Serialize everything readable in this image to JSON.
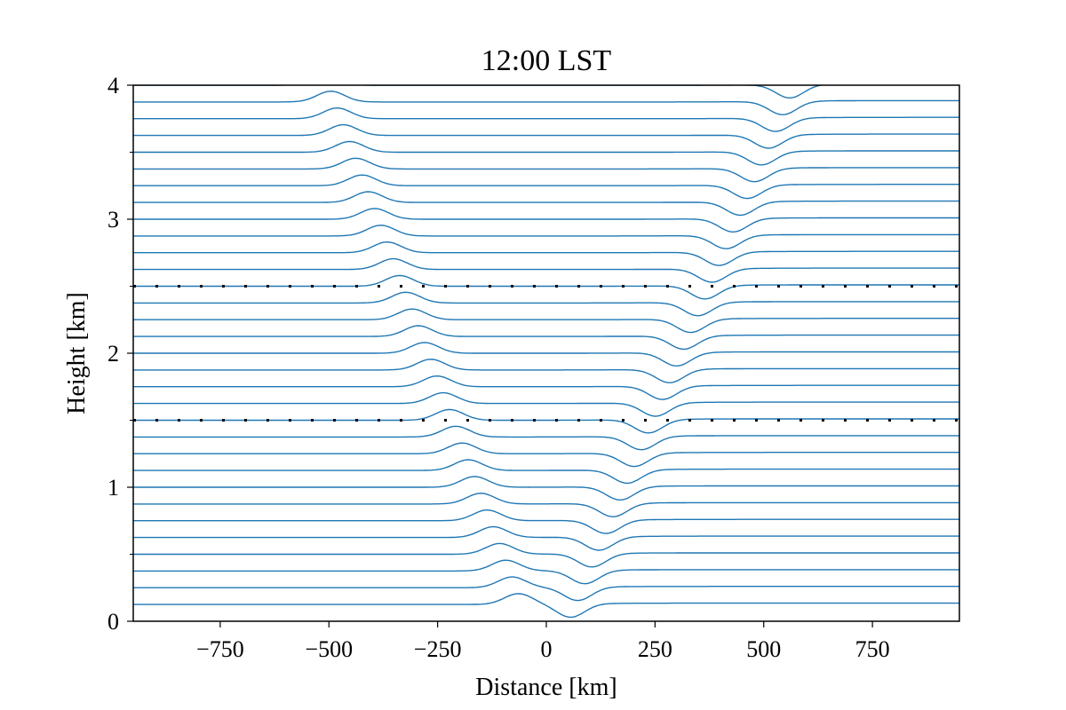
{
  "chart_data": {
    "type": "line",
    "title": "12:00 LST",
    "xlabel": "Distance [km]",
    "ylabel": "Height [km]",
    "xlim": [
      -950,
      950
    ],
    "ylim": [
      0,
      4
    ],
    "xticks": [
      -750,
      -500,
      -250,
      0,
      250,
      500,
      750
    ],
    "xtick_labels": [
      "−750",
      "−500",
      "−250",
      "0",
      "250",
      "500",
      "750"
    ],
    "yticks": [
      0,
      1,
      2,
      3,
      4
    ],
    "ytick_labels": [
      "0",
      "1",
      "2",
      "3",
      "4"
    ],
    "y_minor_ticks": [
      0.5,
      1.5,
      2.5,
      3.5
    ],
    "series_color": "#1f77b4",
    "reference_lines": [
      {
        "name": "dotted-level-lower",
        "y": 1.5,
        "style": "dotted",
        "color": "#000000"
      },
      {
        "name": "dotted-level-upper",
        "y": 2.5,
        "style": "dotted",
        "color": "#000000"
      }
    ],
    "streamlines": {
      "description": "Isentropic streamlines; base heights from 0.125 to 4.0 km every 0.125 km",
      "base_heights_start": 0.125,
      "base_heights_step": 0.125,
      "count": 32,
      "crest": {
        "x_at_surface": -50,
        "x_at_top": -510,
        "amplitude_km": 0.08,
        "width_km": 45
      },
      "trough": {
        "x_at_surface": 40,
        "x_at_top": 560,
        "amplitude_km": 0.1,
        "width_km": 45
      },
      "far_right_offset_km": 0.01
    }
  }
}
